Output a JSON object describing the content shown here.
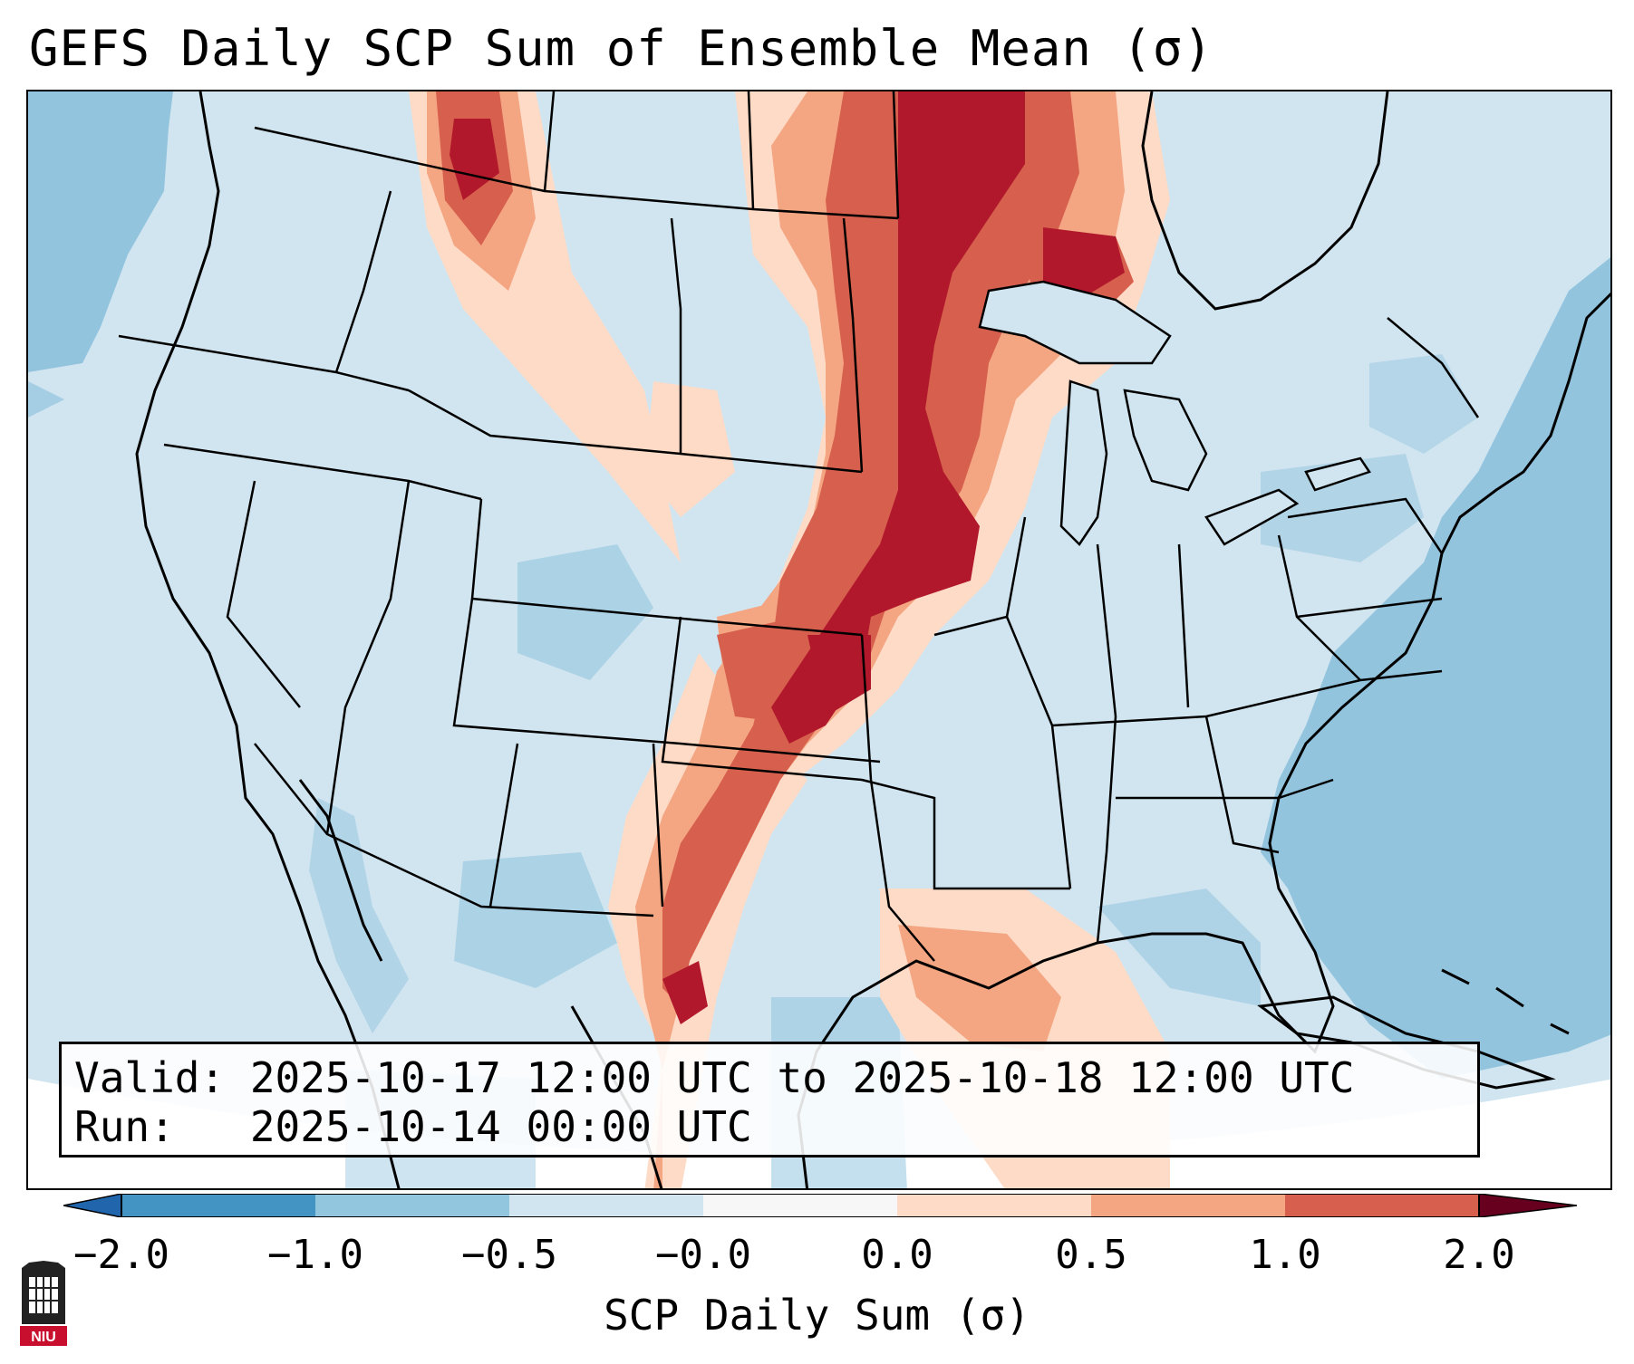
{
  "title": "GEFS Daily SCP Sum of Ensemble Mean (σ)",
  "info": {
    "valid_line": "Valid: 2025-10-17 12:00 UTC to 2025-10-18 12:00 UTC",
    "run_line": "Run:   2025-10-14 00:00 UTC"
  },
  "colorbar": {
    "label": "SCP Daily Sum (σ)",
    "ticks": [
      "−2.0",
      "−1.0",
      "−0.5",
      "−0.0",
      "0.0",
      "0.5",
      "1.0",
      "2.0"
    ],
    "colors": [
      "#4393c3",
      "#92c5de",
      "#d1e5f0",
      "#f7f7f7",
      "#fddbc7",
      "#f4a582",
      "#d6604d",
      "#b2182b"
    ]
  },
  "map": {
    "ocean_color": "#93c4de",
    "land_color": "#d1e5f0",
    "high_color": "#b2182b"
  },
  "logo": {
    "text": "NIU",
    "icon": "university-logo-icon"
  }
}
